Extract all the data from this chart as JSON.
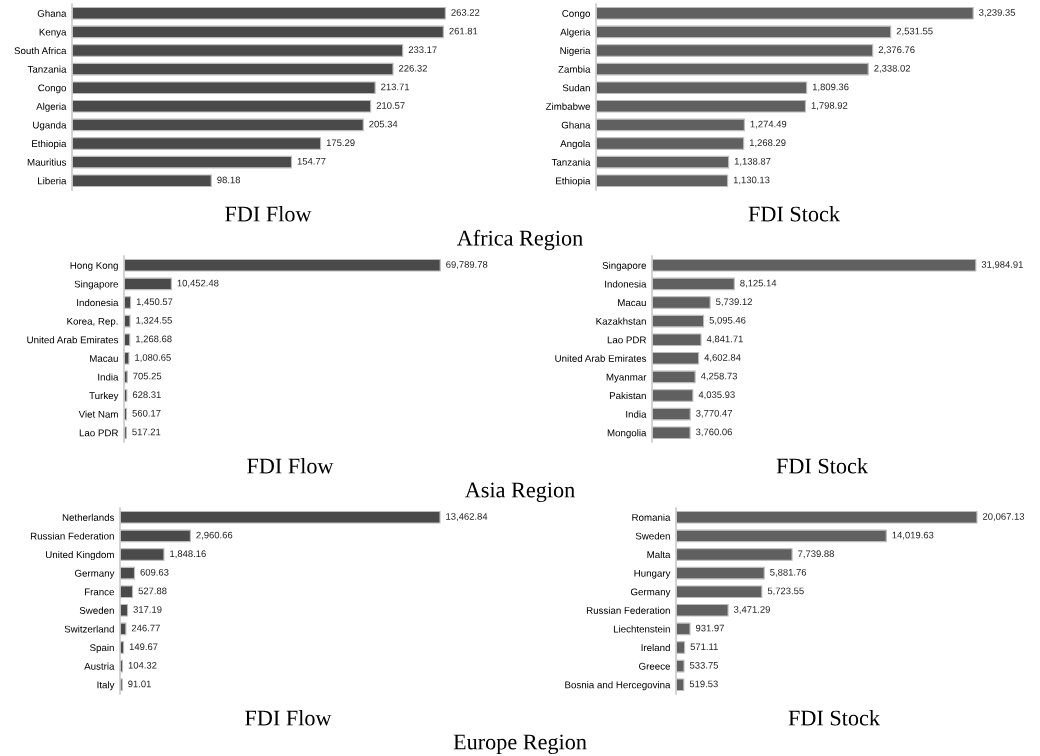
{
  "chart_data": [
    {
      "type": "bar",
      "orientation": "horizontal",
      "xlabel": "FDI Flow",
      "annotations": [
        "Africa Region"
      ],
      "categories": [
        "Ghana",
        "Kenya",
        "South Africa",
        "Tanzania",
        "Congo",
        "Algeria",
        "Uganda",
        "Ethiopia",
        "Mauritius",
        "Liberia"
      ],
      "values": [
        263.22,
        261.81,
        233.17,
        226.32,
        213.71,
        210.57,
        205.34,
        175.29,
        154.77,
        98.18
      ],
      "value_labels": [
        "263.22",
        "261.81",
        "233.17",
        "226.32",
        "213.71",
        "210.57",
        "205.34",
        "175.29",
        "154.77",
        "98.18"
      ],
      "color": "#4a4a4a",
      "tick_labels": "y"
    },
    {
      "type": "bar",
      "orientation": "horizontal",
      "xlabel": "FDI Stock",
      "categories": [
        "Congo",
        "Algeria",
        "Nigeria",
        "Zambia",
        "Sudan",
        "Zimbabwe",
        "Ghana",
        "Angola",
        "Tanzania",
        "Ethiopia"
      ],
      "values": [
        3239.35,
        2531.55,
        2376.76,
        2338.02,
        1809.36,
        1798.92,
        1274.49,
        1268.29,
        1138.87,
        1130.13
      ],
      "value_labels": [
        "3,239.35",
        "2,531.55",
        "2,376.76",
        "2,338.02",
        "1,809.36",
        "1,798.92",
        "1,274.49",
        "1,268.29",
        "1,138.87",
        "1,130.13"
      ],
      "color": "#606060",
      "tick_labels": "y"
    },
    {
      "type": "bar",
      "orientation": "horizontal",
      "xlabel": "FDI Flow",
      "annotations": [
        "Asia Region"
      ],
      "categories": [
        "Hong Kong",
        "Singapore",
        "Indonesia",
        "Korea, Rep.",
        "United Arab Emirates",
        "Macau",
        "India",
        "Turkey",
        "Viet Nam",
        "Lao PDR"
      ],
      "values": [
        69789.78,
        10452.48,
        1450.57,
        1324.55,
        1268.68,
        1080.65,
        705.25,
        628.31,
        560.17,
        517.21
      ],
      "value_labels": [
        "69,789.78",
        "10,452.48",
        "1,450.57",
        "1,324.55",
        "1,268.68",
        "1,080.65",
        "705.25",
        "628.31",
        "560.17",
        "517.21"
      ],
      "color": "#4a4a4a",
      "tick_labels": "y"
    },
    {
      "type": "bar",
      "orientation": "horizontal",
      "xlabel": "FDI Stock",
      "categories": [
        "Singapore",
        "Indonesia",
        "Macau",
        "Kazakhstan",
        "Lao PDR",
        "United Arab Emirates",
        "Myanmar",
        "Pakistan",
        "India",
        "Mongolia"
      ],
      "values": [
        31984.91,
        8125.14,
        5739.12,
        5095.46,
        4841.71,
        4602.84,
        4258.73,
        4035.93,
        3770.47,
        3760.06
      ],
      "value_labels": [
        "31,984.91",
        "8,125.14",
        "5,739.12",
        "5,095.46",
        "4,841.71",
        "4,602.84",
        "4,258.73",
        "4,035.93",
        "3,770.47",
        "3,760.06"
      ],
      "color": "#606060",
      "tick_labels": "y"
    },
    {
      "type": "bar",
      "orientation": "horizontal",
      "xlabel": "FDI Flow",
      "annotations": [
        "Europe Region"
      ],
      "categories": [
        "Netherlands",
        "Russian Federation",
        "United Kingdom",
        "Germany",
        "France",
        "Sweden",
        "Switzerland",
        "Spain",
        "Austria",
        "Italy"
      ],
      "values": [
        13462.84,
        2960.66,
        1848.16,
        609.63,
        527.88,
        317.19,
        246.77,
        149.67,
        104.32,
        91.01
      ],
      "value_labels": [
        "13,462.84",
        "2,960.66",
        "1,848.16",
        "609.63",
        "527.88",
        "317.19",
        "246.77",
        "149.67",
        "104.32",
        "91.01"
      ],
      "color": "#4a4a4a",
      "tick_labels": "y"
    },
    {
      "type": "bar",
      "orientation": "horizontal",
      "xlabel": "FDI Stock",
      "categories": [
        "Romania",
        "Sweden",
        "Malta",
        "Hungary",
        "Germany",
        "Russian Federation",
        "Liechtenstein",
        "Ireland",
        "Greece",
        "Bosnia and Hercegovina"
      ],
      "values": [
        20067.13,
        14019.63,
        7739.88,
        5881.76,
        5723.55,
        3471.29,
        931.97,
        571.11,
        533.75,
        519.53
      ],
      "value_labels": [
        "20,067.13",
        "14,019.63",
        "7,739.88",
        "5,881.76",
        "5,723.55",
        "3,471.29",
        "931.97",
        "571.11",
        "533.75",
        "519.53"
      ],
      "color": "#606060",
      "tick_labels": "y"
    }
  ]
}
